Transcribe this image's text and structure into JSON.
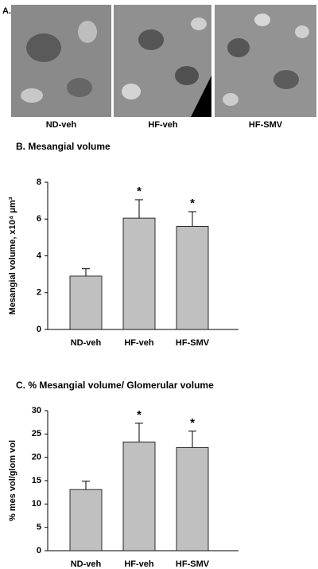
{
  "panel_a": {
    "label": "A.",
    "images": [
      "ND-veh",
      "HF-veh",
      "HF-SMV"
    ]
  },
  "chart_data": [
    {
      "type": "bar",
      "title": "B. Mesangial volume",
      "y_label": "Mesangial volume, x10⁴ μm³",
      "categories": [
        "ND-veh",
        "HF-veh",
        "HF-SMV"
      ],
      "values": [
        2.9,
        6.05,
        5.6
      ],
      "errors": [
        0.4,
        1.0,
        0.8
      ],
      "significance": [
        null,
        "*",
        "*"
      ],
      "color": "#c0c0c0",
      "ylim": [
        0,
        8
      ],
      "yticks": [
        0,
        2,
        4,
        6,
        8
      ]
    },
    {
      "type": "bar",
      "title": "C. % Mesangial volume/ Glomerular volume",
      "y_label": "% mes vol/glom vol",
      "categories": [
        "ND-veh",
        "HF-veh",
        "HF-SMV"
      ],
      "values": [
        13.1,
        23.3,
        22.1
      ],
      "errors": [
        1.8,
        4.0,
        3.5
      ],
      "significance": [
        null,
        "*",
        "*"
      ],
      "color": "#c0c0c0",
      "ylim": [
        0,
        30
      ],
      "yticks": [
        0,
        5,
        10,
        15,
        20,
        25,
        30
      ]
    }
  ]
}
